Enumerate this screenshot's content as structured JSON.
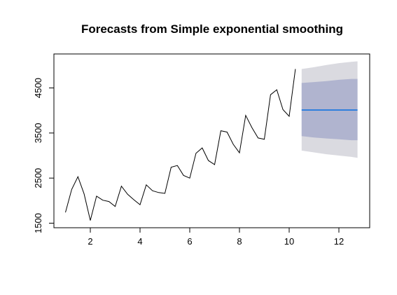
{
  "chart_data": {
    "type": "line",
    "title": "Forecasts from Simple exponential smoothing",
    "xlabel": "",
    "ylabel": "",
    "xlim": [
      1,
      12.75
    ],
    "ylim": [
      1500,
      4960
    ],
    "x_ticks": [
      2,
      4,
      6,
      8,
      10,
      12
    ],
    "y_ticks": [
      1500,
      2500,
      3500,
      4500
    ],
    "grid": false,
    "legend": "none",
    "series": [
      {
        "role": "observed",
        "color": "#000000",
        "x": [
          1.0,
          1.25,
          1.5,
          1.75,
          2.0,
          2.25,
          2.5,
          2.75,
          3.0,
          3.25,
          3.5,
          3.75,
          4.0,
          4.25,
          4.5,
          4.75,
          5.0,
          5.25,
          5.5,
          5.75,
          6.0,
          6.25,
          6.5,
          6.75,
          7.0,
          7.25,
          7.5,
          7.75,
          8.0,
          8.25,
          8.5,
          8.75,
          9.0,
          9.25,
          9.5,
          9.75,
          10.0,
          10.25
        ],
        "values": [
          1740,
          2250,
          2530,
          2150,
          1560,
          2100,
          2010,
          1980,
          1870,
          2320,
          2140,
          2020,
          1910,
          2350,
          2220,
          2180,
          2160,
          2740,
          2780,
          2560,
          2500,
          3050,
          3170,
          2890,
          2800,
          3550,
          3520,
          3250,
          3060,
          3890,
          3620,
          3390,
          3360,
          4350,
          4460,
          4020,
          3870,
          4920
        ]
      },
      {
        "role": "point-forecast",
        "color": "#2f7fdd",
        "x": [
          10.5,
          12.75
        ],
        "values": [
          4010,
          4010
        ]
      }
    ],
    "intervals": [
      {
        "level": "outer",
        "color": "#dadae0",
        "x": [
          10.5,
          11.0,
          11.5,
          12.0,
          12.5,
          12.75
        ],
        "lower": [
          3110,
          3070,
          3030,
          3000,
          2970,
          2950
        ],
        "upper": [
          4920,
          4960,
          5010,
          5050,
          5080,
          5090
        ]
      },
      {
        "level": "inner",
        "color": "#b0b4cf",
        "x": [
          10.5,
          11.0,
          11.5,
          12.0,
          12.5,
          12.75
        ],
        "lower": [
          3430,
          3400,
          3380,
          3360,
          3340,
          3340
        ],
        "upper": [
          4610,
          4630,
          4650,
          4680,
          4700,
          4700
        ]
      }
    ]
  }
}
